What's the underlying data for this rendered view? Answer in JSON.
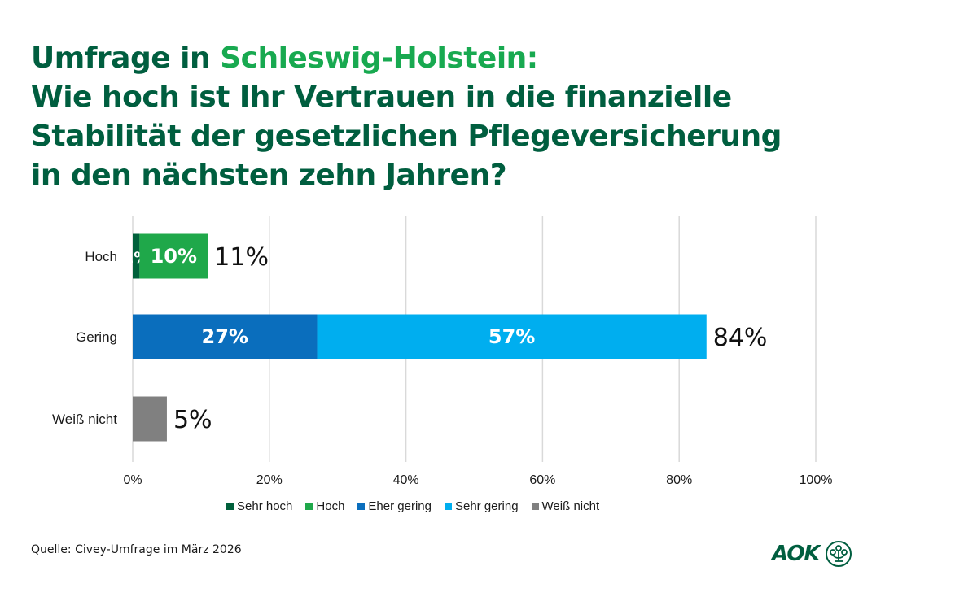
{
  "title": {
    "line1_prefix": "Umfrage in ",
    "line1_highlight": "Schleswig-Holstein:",
    "line2": "Wie hoch ist Ihr Vertrauen in die finanzielle",
    "line3": "Stabilität der gesetzlichen Pflegeversicherung",
    "line4": "in den nächsten zehn Jahren?"
  },
  "source": "Quelle: Civey-Umfrage im März 2026",
  "logo": {
    "text": "AOK"
  },
  "colors": {
    "title": "#005e3f",
    "highlight": "#18a950",
    "sehr_hoch": "#00603b",
    "hoch": "#1fa84a",
    "eher_gering": "#0a6ebd",
    "sehr_gering": "#00aeef",
    "weiss_nicht": "#808080"
  },
  "chart_data": {
    "type": "bar",
    "orientation": "horizontal",
    "stacked": true,
    "title": "Wie hoch ist Ihr Vertrauen in die finanzielle Stabilität der gesetzlichen Pflegeversicherung in den nächsten zehn Jahren?",
    "xlabel": "",
    "ylabel": "",
    "xlim": [
      0,
      100
    ],
    "x_ticks": [
      "0%",
      "20%",
      "40%",
      "60%",
      "80%",
      "100%"
    ],
    "grid": true,
    "legend_position": "bottom",
    "categories": [
      "Hoch",
      "Gering",
      "Weiß nicht"
    ],
    "series": [
      {
        "name": "Sehr hoch",
        "color": "#00603b",
        "values": [
          1,
          0,
          0
        ],
        "labels": [
          "1%",
          "",
          ""
        ]
      },
      {
        "name": "Hoch",
        "color": "#1fa84a",
        "values": [
          10,
          0,
          0
        ],
        "labels": [
          "10%",
          "",
          ""
        ]
      },
      {
        "name": "Eher gering",
        "color": "#0a6ebd",
        "values": [
          0,
          27,
          0
        ],
        "labels": [
          "",
          "27%",
          ""
        ]
      },
      {
        "name": "Sehr gering",
        "color": "#00aeef",
        "values": [
          0,
          57,
          0
        ],
        "labels": [
          "",
          "57%",
          ""
        ]
      },
      {
        "name": "Weiß nicht",
        "color": "#808080",
        "values": [
          0,
          0,
          5
        ],
        "labels": [
          "",
          "",
          ""
        ]
      }
    ],
    "totals": [
      "11%",
      "84%",
      "5%"
    ]
  }
}
